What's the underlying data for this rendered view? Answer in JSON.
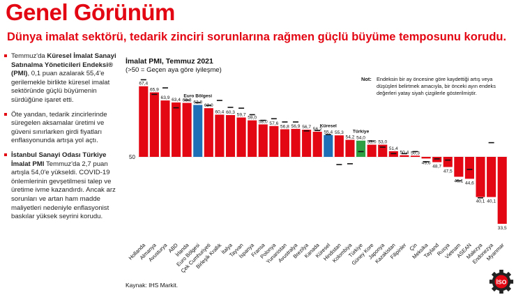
{
  "header": {
    "title": "Genel Görünüm",
    "subtitle": "Dünya imalat sektörü, tedarik zinciri sorunlarına rağmen güçlü büyüme temposunu korudu."
  },
  "bullets": [
    {
      "lead": "Temmuz'da ",
      "bold": "Küresel İmalat Sanayi Satınalma Yöneticileri Endeksi® (PMI)",
      "rest": ", 0,1 puan azalarak 55,4'e gerilemekle birlikte küresel imalat sektöründe güçlü büyümenin sürdüğüne işaret etti."
    },
    {
      "lead": "Öte yandan, tedarik zincirlerinde süregelen aksamalar üretimi ve güveni sınırlarken girdi fiyatları enflasyonunda artışa yol açtı.",
      "bold": "",
      "rest": ""
    },
    {
      "lead": "",
      "bold": "İstanbul Sanayi Odası Türkiye İmalat PMI",
      "rest": " Temmuz'da 2,7 puan artışla 54,0'e yükseldi. COVID-19 önlemlerinin gevşetilmesi talep ve üretime ivme kazandırdı. Ancak arz sorunları ve artan ham madde maliyetleri nedeniyle enflasyonist baskılar yüksek seyrini korudu."
    }
  ],
  "chart_data": {
    "type": "bar",
    "title": "İmalat PMI, Temmuz 2021",
    "subtitle": "(>50 = Geçen aya göre iyileşme)",
    "baseline": 50,
    "baseline_label": "50",
    "categories": [
      "Hollanda",
      "Almanya",
      "Avusturya",
      "ABD",
      "İrlanda",
      "Euro Bölgesi",
      "Çek Cumhuriyeti",
      "Birleşik Krallık",
      "İtalya",
      "Tayvan",
      "İspanya",
      "Fransa",
      "Polonya",
      "Yunanistan",
      "Avustralya",
      "Brezilya",
      "Kanada",
      "Küresel",
      "Hindistan",
      "Kolombiya",
      "Türkiye",
      "Güney Kore",
      "Japonya",
      "Kazakistan",
      "Filipinler",
      "Çin",
      "Meksika",
      "Tayland",
      "Rusya",
      "Vietnam",
      "ASEAN",
      "Malezya",
      "Endonezya",
      "Myanmar"
    ],
    "values": [
      67.4,
      65.9,
      63.9,
      63.4,
      63.3,
      62.8,
      62.0,
      60.4,
      60.3,
      59.7,
      59.0,
      58.0,
      57.6,
      56.8,
      56.9,
      56.7,
      56.2,
      55.4,
      55.3,
      54.2,
      54.0,
      53.0,
      53.0,
      51.4,
      50.4,
      50.3,
      49.6,
      48.7,
      47.5,
      45.1,
      44.6,
      40.1,
      40.1,
      33.5
    ],
    "value_labels": [
      "67,4",
      "65,9",
      "63,9",
      "63,4",
      "63,3",
      "62,8",
      "62,0",
      "60,4",
      "60,3",
      "59,7",
      "59,0",
      "58,0",
      "57,6",
      "56,8",
      "56,9",
      "56,7",
      "56,2",
      "55,4",
      "55,3",
      "54,2",
      "54,0",
      "53,0",
      "53,0",
      "51,4",
      "50,4",
      "50,3",
      "49,6",
      "48,7",
      "47,5",
      "45,1",
      "44,6",
      "40,1",
      "40,1",
      "33,5"
    ],
    "previous_month": [
      69.0,
      65.4,
      67.0,
      62.1,
      64.0,
      63.4,
      62.7,
      63.9,
      62.2,
      62.0,
      60.4,
      59.0,
      59.4,
      58.6,
      58.6,
      56.4,
      56.5,
      55.5,
      48.1,
      48.3,
      51.3,
      53.9,
      52.4,
      50.8,
      50.8,
      51.3,
      48.8,
      49.5,
      49.2,
      44.1,
      46.9,
      39.9,
      53.5,
      null
    ],
    "highlight": {
      "Euro Bölgesi": {
        "color": "#1f6fb7",
        "label": "Euro Bölgesi"
      },
      "Küresel": {
        "color": "#1f6fb7",
        "label": "Küresel"
      },
      "Türkiye": {
        "color": "#2ea043",
        "label": "Türkiye"
      }
    },
    "default_color": "#e30613",
    "ylim": [
      31,
      70
    ]
  },
  "note": {
    "label": "Not:",
    "text": "Endeksin bir ay öncesine göre kaydettiği artış veya düşüşleri belirtmek amacıyla, bir önceki ayın endeks değerleri yatay siyah çizgilerle gösterilmiştir."
  },
  "source": "Kaynak: IHS Markit.",
  "logo": {
    "text": "İSO",
    "color": "#e30613"
  }
}
